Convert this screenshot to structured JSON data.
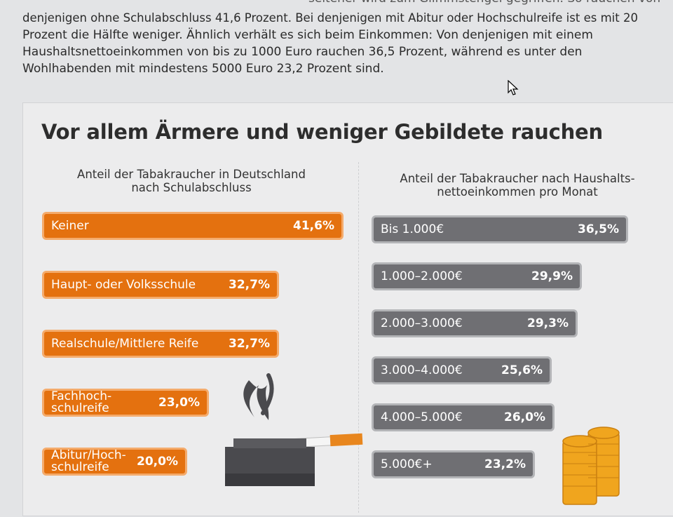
{
  "article": {
    "lines": [
      "denjenigen ohne Schulabschluss 41,6 Prozent. Bei denjenigen mit Abitur oder Hochschulreife ist es mit 20",
      "Prozent die Hälfte weniger. Ähnlich verhält es sich beim Einkommen: Von denjenigen mit einem",
      "Haushaltsnettoeinkommen von bis zu 1000 Euro rauchen 36,5 Prozent, während es unter den",
      "Wohlhabenden mit mindestens 5000 Euro 23,2 Prozent sind."
    ],
    "partial_top_line": "seltener wird zum Glimmstengel gegriffen. So rauchen von"
  },
  "chart_data": [
    {
      "type": "bar",
      "orientation": "horizontal",
      "title": "Vor allem Ärmere und weniger Gebildete rauchen",
      "subtitle_lines": [
        "Anteil der Tabakraucher in Deutschland",
        "nach Schulabschluss"
      ],
      "categories": [
        "Keiner",
        "Haupt- oder Volksschule",
        "Realschule/Mittlere Reife",
        "Fachhoch-\nschulreife",
        "Abitur/Hoch-\nschulreife"
      ],
      "values": [
        41.6,
        32.7,
        32.7,
        23.0,
        20.0
      ],
      "value_labels": [
        "41,6%",
        "32,7%",
        "32,7%",
        "23,0%",
        "20,0%"
      ],
      "color": "#e4710f"
    },
    {
      "type": "bar",
      "orientation": "horizontal",
      "subtitle_lines": [
        "Anteil der Tabakraucher nach Haushalts-",
        "nettoeinkommen pro Monat"
      ],
      "categories": [
        "Bis 1.000€",
        "1.000–2.000€",
        "2.000–3.000€",
        "3.000–4.000€",
        "4.000–5.000€",
        "5.000€+"
      ],
      "values": [
        36.5,
        29.9,
        29.3,
        25.6,
        26.0,
        23.2
      ],
      "value_labels": [
        "36,5%",
        "29,9%",
        "29,3%",
        "25,6%",
        "26,0%",
        "23,2%"
      ],
      "color": "#6f6f73"
    }
  ],
  "colors": {
    "orange": "#e4710f",
    "grey": "#6f6f73",
    "coin": "#f0a51e"
  },
  "icons": [
    "cursor-icon",
    "cigarette-ashtray-illustration",
    "coin-stack-illustration"
  ]
}
